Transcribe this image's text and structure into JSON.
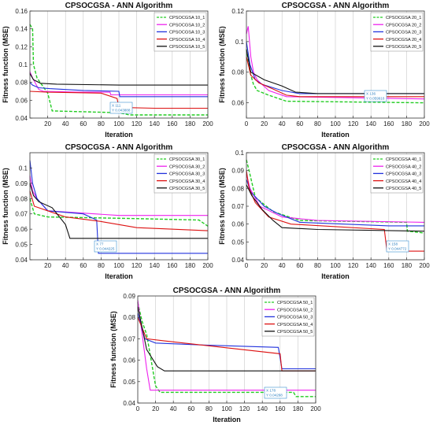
{
  "chart_data": [
    {
      "type": "line",
      "title": "CPSOCGSA - ANN Algorithm",
      "xlabel": "Iteration",
      "ylabel": "Fitness function (MSE)",
      "xlim": [
        0,
        200
      ],
      "ylim": [
        0.04,
        0.16
      ],
      "xticks": [
        "20",
        "40",
        "60",
        "80",
        "100",
        "120",
        "140",
        "160",
        "180",
        "200"
      ],
      "yticks": [
        "0.04",
        "0.06",
        "0.08",
        "0.1",
        "0.12",
        "0.14",
        "0.16"
      ],
      "grid": "vertical",
      "legend_position": "top-right",
      "series": [
        {
          "name": "CPSOCGSA 10_1",
          "color": "#22cc22",
          "dashed": true,
          "points": [
            [
              0,
              0.145
            ],
            [
              3,
              0.14
            ],
            [
              4,
              0.1
            ],
            [
              8,
              0.085
            ],
            [
              20,
              0.068
            ],
            [
              25,
              0.048
            ],
            [
              100,
              0.046
            ],
            [
              112,
              0.0435
            ],
            [
              200,
              0.0435
            ]
          ]
        },
        {
          "name": "CPSOCGSA 10_2",
          "color": "#ee22ee",
          "points": [
            [
              0,
              0.092
            ],
            [
              3,
              0.085
            ],
            [
              10,
              0.072
            ],
            [
              15,
              0.07
            ],
            [
              55,
              0.069
            ],
            [
              90,
              0.069
            ],
            [
              91,
              0.066
            ],
            [
              200,
              0.066
            ]
          ]
        },
        {
          "name": "CPSOCGSA 10_3",
          "color": "#2233dd",
          "points": [
            [
              0,
              0.08
            ],
            [
              3,
              0.077
            ],
            [
              10,
              0.074
            ],
            [
              22,
              0.073
            ],
            [
              40,
              0.072
            ],
            [
              60,
              0.071
            ],
            [
              100,
              0.07
            ],
            [
              101,
              0.064
            ],
            [
              200,
              0.064
            ]
          ]
        },
        {
          "name": "CPSOCGSA 10_4",
          "color": "#dd1111",
          "points": [
            [
              0,
              0.07
            ],
            [
              20,
              0.069
            ],
            [
              80,
              0.068
            ],
            [
              98,
              0.062
            ],
            [
              100,
              0.052
            ],
            [
              140,
              0.051
            ],
            [
              200,
              0.051
            ]
          ]
        },
        {
          "name": "CPSOCGSA 10_5",
          "color": "#111111",
          "points": [
            [
              0,
              0.09
            ],
            [
              4,
              0.083
            ],
            [
              12,
              0.079
            ],
            [
              30,
              0.078
            ],
            [
              100,
              0.077
            ],
            [
              200,
              0.077
            ]
          ]
        }
      ],
      "annotation": {
        "lines": [
          "X 111",
          "Y 0.043888"
        ]
      }
    },
    {
      "type": "line",
      "title": "CPSOCGSA - ANN Algorithm",
      "xlabel": "Iteration",
      "ylabel": "Fitness function (MSE)",
      "xlim": [
        0,
        200
      ],
      "ylim": [
        0.05,
        0.12
      ],
      "xticks": [
        "0",
        "20",
        "40",
        "60",
        "80",
        "100",
        "120",
        "140",
        "160",
        "180",
        "200"
      ],
      "yticks": [
        "0.06",
        "0.08",
        "0.1",
        "0.12"
      ],
      "grid": "vertical",
      "legend_position": "top-right",
      "series": [
        {
          "name": "CPSOCGSA 20_1",
          "color": "#22cc22",
          "dashed": true,
          "points": [
            [
              0,
              0.095
            ],
            [
              4,
              0.08
            ],
            [
              8,
              0.072
            ],
            [
              12,
              0.068
            ],
            [
              25,
              0.065
            ],
            [
              40,
              0.062
            ],
            [
              45,
              0.061
            ],
            [
              200,
              0.06
            ]
          ]
        },
        {
          "name": "CPSOCGSA 20_2",
          "color": "#ee22ee",
          "points": [
            [
              0,
              0.105
            ],
            [
              2,
              0.11
            ],
            [
              5,
              0.09
            ],
            [
              8,
              0.08
            ],
            [
              12,
              0.075
            ],
            [
              25,
              0.068
            ],
            [
              45,
              0.064
            ],
            [
              200,
              0.0625
            ]
          ]
        },
        {
          "name": "CPSOCGSA 20_3",
          "color": "#2233dd",
          "points": [
            [
              0,
              0.1
            ],
            [
              4,
              0.085
            ],
            [
              10,
              0.075
            ],
            [
              18,
              0.072
            ],
            [
              40,
              0.068
            ],
            [
              60,
              0.066
            ],
            [
              200,
              0.066
            ]
          ]
        },
        {
          "name": "CPSOCGSA 20_4",
          "color": "#dd1111",
          "points": [
            [
              0,
              0.09
            ],
            [
              5,
              0.078
            ],
            [
              14,
              0.073
            ],
            [
              30,
              0.069
            ],
            [
              45,
              0.065
            ],
            [
              60,
              0.064
            ],
            [
              200,
              0.064
            ]
          ]
        },
        {
          "name": "CPSOCGSA 20_5",
          "color": "#111111",
          "points": [
            [
              0,
              0.095
            ],
            [
              5,
              0.08
            ],
            [
              20,
              0.075
            ],
            [
              40,
              0.071
            ],
            [
              55,
              0.067
            ],
            [
              80,
              0.066
            ],
            [
              200,
              0.066
            ]
          ]
        }
      ],
      "annotation": {
        "lines": [
          "X 136",
          "Y 0.059916"
        ]
      }
    },
    {
      "type": "line",
      "title": "CPSOCGSA - ANN Algorithm",
      "xlabel": "Iteration",
      "ylabel": "Fitness function (MSE)",
      "xlim": [
        0,
        200
      ],
      "ylim": [
        0.04,
        0.11
      ],
      "xticks": [
        "20",
        "40",
        "60",
        "80",
        "100",
        "120",
        "140",
        "160",
        "180",
        "200"
      ],
      "yticks": [
        "0.04",
        "0.05",
        "0.06",
        "0.07",
        "0.08",
        "0.09",
        "0.1"
      ],
      "grid": "vertical",
      "legend_position": "top-right",
      "series": [
        {
          "name": "CPSOCGSA 30_1",
          "color": "#22cc22",
          "dashed": true,
          "points": [
            [
              0,
              0.08
            ],
            [
              5,
              0.07
            ],
            [
              20,
              0.068
            ],
            [
              110,
              0.067
            ],
            [
              190,
              0.066
            ],
            [
              200,
              0.062
            ]
          ]
        },
        {
          "name": "CPSOCGSA 30_2",
          "color": "#ee22ee",
          "points": [
            [
              0,
              0.095
            ],
            [
              3,
              0.085
            ],
            [
              8,
              0.08
            ],
            [
              20,
              0.072
            ],
            [
              100,
              0.069
            ],
            [
              200,
              0.069
            ]
          ]
        },
        {
          "name": "CPSOCGSA 30_3",
          "color": "#2233dd",
          "points": [
            [
              0,
              0.105
            ],
            [
              3,
              0.09
            ],
            [
              8,
              0.08
            ],
            [
              20,
              0.072
            ],
            [
              60,
              0.07
            ],
            [
              75,
              0.066
            ],
            [
              77,
              0.0442
            ],
            [
              200,
              0.0442
            ]
          ]
        },
        {
          "name": "CPSOCGSA 30_4",
          "color": "#dd1111",
          "points": [
            [
              0,
              0.085
            ],
            [
              5,
              0.075
            ],
            [
              20,
              0.072
            ],
            [
              40,
              0.068
            ],
            [
              80,
              0.065
            ],
            [
              120,
              0.061
            ],
            [
              200,
              0.059
            ]
          ]
        },
        {
          "name": "CPSOCGSA 30_5",
          "color": "#111111",
          "points": [
            [
              0,
              0.09
            ],
            [
              4,
              0.082
            ],
            [
              10,
              0.078
            ],
            [
              25,
              0.074
            ],
            [
              40,
              0.063
            ],
            [
              45,
              0.054
            ],
            [
              200,
              0.054
            ]
          ]
        }
      ],
      "annotation": {
        "lines": [
          "X 77",
          "Y 0.044225"
        ]
      }
    },
    {
      "type": "line",
      "title": "CPSOCGSA - ANN Algorithm",
      "xlabel": "Iteration",
      "ylabel": "Fitness function (MSE)",
      "xlim": [
        0,
        200
      ],
      "ylim": [
        0.04,
        0.1
      ],
      "xticks": [
        "0",
        "20",
        "40",
        "60",
        "80",
        "100",
        "120",
        "140",
        "160",
        "180",
        "200"
      ],
      "yticks": [
        "0.04",
        "0.05",
        "0.06",
        "0.07",
        "0.08",
        "0.09",
        "0.1"
      ],
      "grid": "vertical",
      "legend_position": "top-right",
      "series": [
        {
          "name": "CPSOCGSA 40_1",
          "color": "#22cc22",
          "dashed": true,
          "points": [
            [
              0,
              0.096
            ],
            [
              3,
              0.09
            ],
            [
              10,
              0.075
            ],
            [
              30,
              0.067
            ],
            [
              60,
              0.062
            ],
            [
              180,
              0.061
            ],
            [
              181,
              0.056
            ],
            [
              200,
              0.055
            ]
          ]
        },
        {
          "name": "CPSOCGSA 40_2",
          "color": "#ee22ee",
          "points": [
            [
              0,
              0.088
            ],
            [
              4,
              0.08
            ],
            [
              15,
              0.07
            ],
            [
              40,
              0.064
            ],
            [
              80,
              0.062
            ],
            [
              200,
              0.061
            ]
          ]
        },
        {
          "name": "CPSOCGSA 40_3",
          "color": "#2233dd",
          "points": [
            [
              0,
              0.085
            ],
            [
              5,
              0.078
            ],
            [
              20,
              0.07
            ],
            [
              35,
              0.066
            ],
            [
              60,
              0.061
            ],
            [
              160,
              0.059
            ],
            [
              200,
              0.059
            ]
          ]
        },
        {
          "name": "CPSOCGSA 40_4",
          "color": "#dd1111",
          "points": [
            [
              0,
              0.09
            ],
            [
              3,
              0.08
            ],
            [
              10,
              0.072
            ],
            [
              25,
              0.064
            ],
            [
              50,
              0.06
            ],
            [
              155,
              0.057
            ],
            [
              158,
              0.0448
            ],
            [
              200,
              0.0448
            ]
          ]
        },
        {
          "name": "CPSOCGSA 40_5",
          "color": "#111111",
          "points": [
            [
              0,
              0.082
            ],
            [
              6,
              0.076
            ],
            [
              18,
              0.068
            ],
            [
              30,
              0.062
            ],
            [
              40,
              0.058
            ],
            [
              80,
              0.057
            ],
            [
              200,
              0.056
            ]
          ]
        }
      ],
      "annotation": {
        "lines": [
          "X 158",
          "Y 0.044772"
        ]
      }
    },
    {
      "type": "line",
      "title": "CPSOCGSA - ANN Algorithm",
      "xlabel": "Iteration",
      "ylabel": "Fitness function (MSE)",
      "xlim": [
        0,
        200
      ],
      "ylim": [
        0.04,
        0.09
      ],
      "xticks": [
        "0",
        "20",
        "40",
        "60",
        "80",
        "100",
        "120",
        "140",
        "160",
        "180",
        "200"
      ],
      "yticks": [
        "0.04",
        "0.05",
        "0.06",
        "0.07",
        "0.08",
        "0.09"
      ],
      "grid": "vertical",
      "legend_position": "top-right",
      "series": [
        {
          "name": "CPSOCGSA 50_1",
          "color": "#22cc22",
          "dashed": true,
          "points": [
            [
              0,
              0.087
            ],
            [
              5,
              0.078
            ],
            [
              10,
              0.072
            ],
            [
              15,
              0.06
            ],
            [
              20,
              0.048
            ],
            [
              25,
              0.045
            ],
            [
              175,
              0.045
            ],
            [
              178,
              0.043
            ],
            [
              200,
              0.043
            ]
          ]
        },
        {
          "name": "CPSOCGSA 50_2",
          "color": "#ee22ee",
          "points": [
            [
              0,
              0.088
            ],
            [
              5,
              0.072
            ],
            [
              10,
              0.056
            ],
            [
              14,
              0.046
            ],
            [
              200,
              0.046
            ]
          ]
        },
        {
          "name": "CPSOCGSA 50_3",
          "color": "#2233dd",
          "points": [
            [
              0,
              0.082
            ],
            [
              8,
              0.07
            ],
            [
              20,
              0.068
            ],
            [
              80,
              0.067
            ],
            [
              158,
              0.066
            ],
            [
              162,
              0.056
            ],
            [
              200,
              0.056
            ]
          ]
        },
        {
          "name": "CPSOCGSA 50_4",
          "color": "#dd1111",
          "points": [
            [
              0,
              0.08
            ],
            [
              10,
              0.07
            ],
            [
              30,
              0.069
            ],
            [
              160,
              0.063
            ],
            [
              162,
              0.055
            ],
            [
              200,
              0.055
            ]
          ]
        },
        {
          "name": "CPSOCGSA 50_5",
          "color": "#111111",
          "points": [
            [
              0,
              0.085
            ],
            [
              10,
              0.065
            ],
            [
              22,
              0.057
            ],
            [
              30,
              0.055
            ],
            [
              200,
              0.055
            ]
          ]
        }
      ],
      "annotation": {
        "lines": [
          "X 178",
          "Y 0.04268"
        ]
      }
    }
  ]
}
